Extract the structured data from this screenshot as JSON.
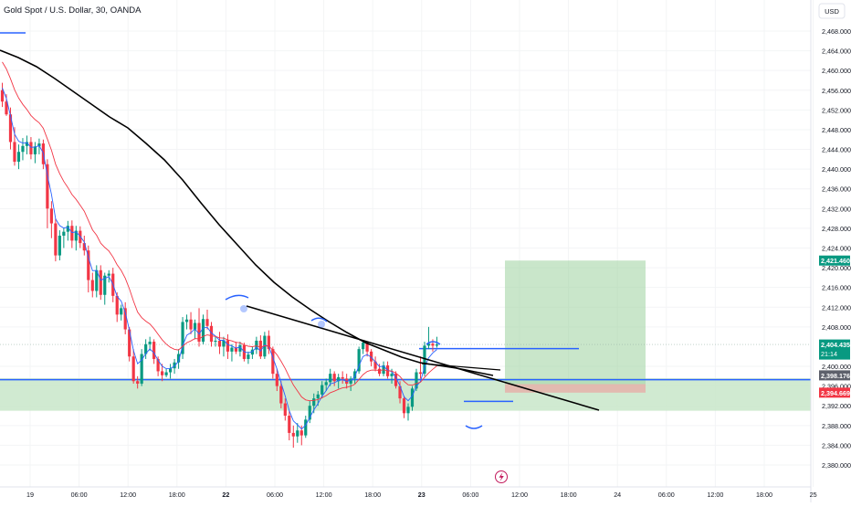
{
  "header": {
    "symbol_title": "Gold Spot / U.S. Dollar, 30, OANDA",
    "currency_button": "USD"
  },
  "colors": {
    "up": "#089981",
    "down": "#f23645",
    "ema_fast": "#2962ff",
    "ema_mid": "#f23645",
    "ema_slow": "#000000",
    "level_line": "#2962ff",
    "zone_fill": "#c8e6c9",
    "target_fill": "#a5d6a7",
    "stop_fill": "#ef9a9a"
  },
  "chart_data": {
    "type": "candlestick",
    "symbol": "XAUUSD",
    "timeframe": "30",
    "ylim": [
      2378.5,
      2471.5
    ],
    "y_ticks": [
      "2,468.000",
      "2,464.000",
      "2,460.000",
      "2,456.000",
      "2,452.000",
      "2,448.000",
      "2,444.000",
      "2,440.000",
      "2,436.000",
      "2,432.000",
      "2,428.000",
      "2,424.000",
      "2,420.000",
      "2,416.000",
      "2,412.000",
      "2,408.000",
      "2,400.000",
      "2,396.000",
      "2,392.000",
      "2,388.000",
      "2,384.000",
      "2,380.000"
    ],
    "x_ticks": [
      "19",
      "06:00",
      "12:00",
      "18:00",
      "22",
      "06:00",
      "12:00",
      "18:00",
      "23",
      "06:00",
      "12:00",
      "18:00",
      "24",
      "06:00",
      "12:00",
      "18:00",
      "25"
    ],
    "x_ticks_bold": [
      "22",
      "23"
    ],
    "price_labels": [
      {
        "text": "2,421.460",
        "value": 2421.46,
        "color": "#089981"
      },
      {
        "text": "2,404.435",
        "value": 2404.435,
        "color": "#089981",
        "subtext": "21:14"
      },
      {
        "text": "2,398.176",
        "value": 2398.176,
        "color": "#5d606b"
      },
      {
        "text": "2,394.669",
        "value": 2394.669,
        "color": "#f23645"
      }
    ],
    "support_zone": [
      2391.0,
      2397.6
    ],
    "position": {
      "entry": 2396.4,
      "target": 2421.46,
      "stop": 2394.669
    },
    "x_range_bars": [
      0,
      197
    ],
    "candle_bars": [
      0,
      108
    ],
    "candles": [
      {
        "o": 2456.0,
        "h": 2457.5,
        "l": 2452.6,
        "c": 2453.7
      },
      {
        "o": 2453.7,
        "h": 2455.2,
        "l": 2450.8,
        "c": 2451.1
      },
      {
        "o": 2451.1,
        "h": 2452.5,
        "l": 2444.0,
        "c": 2445.5
      },
      {
        "o": 2445.5,
        "h": 2448.5,
        "l": 2440.7,
        "c": 2441.5
      },
      {
        "o": 2441.5,
        "h": 2445.0,
        "l": 2440.0,
        "c": 2443.5
      },
      {
        "o": 2443.5,
        "h": 2446.3,
        "l": 2441.8,
        "c": 2444.7
      },
      {
        "o": 2444.7,
        "h": 2446.8,
        "l": 2443.0,
        "c": 2445.5
      },
      {
        "o": 2445.5,
        "h": 2446.5,
        "l": 2442.0,
        "c": 2443.0
      },
      {
        "o": 2443.0,
        "h": 2445.5,
        "l": 2441.2,
        "c": 2444.6
      },
      {
        "o": 2444.6,
        "h": 2446.2,
        "l": 2443.0,
        "c": 2445.2
      },
      {
        "o": 2445.2,
        "h": 2446.0,
        "l": 2440.0,
        "c": 2441.0
      },
      {
        "o": 2441.0,
        "h": 2442.0,
        "l": 2428.0,
        "c": 2432.0
      },
      {
        "o": 2432.0,
        "h": 2433.5,
        "l": 2426.0,
        "c": 2429.0
      },
      {
        "o": 2429.0,
        "h": 2430.0,
        "l": 2421.3,
        "c": 2422.5
      },
      {
        "o": 2422.5,
        "h": 2427.6,
        "l": 2421.5,
        "c": 2426.5
      },
      {
        "o": 2426.5,
        "h": 2428.0,
        "l": 2424.0,
        "c": 2427.3
      },
      {
        "o": 2427.3,
        "h": 2429.5,
        "l": 2425.5,
        "c": 2428.5
      },
      {
        "o": 2428.5,
        "h": 2429.6,
        "l": 2424.0,
        "c": 2425.5
      },
      {
        "o": 2425.5,
        "h": 2428.5,
        "l": 2423.5,
        "c": 2427.5
      },
      {
        "o": 2427.5,
        "h": 2428.4,
        "l": 2424.0,
        "c": 2425.0
      },
      {
        "o": 2425.0,
        "h": 2426.5,
        "l": 2422.5,
        "c": 2423.5
      },
      {
        "o": 2423.5,
        "h": 2424.5,
        "l": 2415.0,
        "c": 2417.5
      },
      {
        "o": 2417.5,
        "h": 2419.0,
        "l": 2414.0,
        "c": 2415.3
      },
      {
        "o": 2415.3,
        "h": 2420.5,
        "l": 2414.0,
        "c": 2419.5
      },
      {
        "o": 2419.5,
        "h": 2420.5,
        "l": 2413.5,
        "c": 2414.5
      },
      {
        "o": 2414.5,
        "h": 2419.0,
        "l": 2412.5,
        "c": 2418.4
      },
      {
        "o": 2418.4,
        "h": 2419.5,
        "l": 2417.0,
        "c": 2418.8
      },
      {
        "o": 2418.8,
        "h": 2420.0,
        "l": 2413.0,
        "c": 2414.3
      },
      {
        "o": 2414.3,
        "h": 2415.0,
        "l": 2409.0,
        "c": 2410.5
      },
      {
        "o": 2410.5,
        "h": 2412.5,
        "l": 2409.3,
        "c": 2411.8
      },
      {
        "o": 2411.8,
        "h": 2413.0,
        "l": 2406.5,
        "c": 2407.5
      },
      {
        "o": 2407.5,
        "h": 2408.0,
        "l": 2401.0,
        "c": 2402.0
      },
      {
        "o": 2402.0,
        "h": 2403.5,
        "l": 2396.5,
        "c": 2397.0
      },
      {
        "o": 2397.0,
        "h": 2398.0,
        "l": 2395.5,
        "c": 2396.5
      },
      {
        "o": 2396.5,
        "h": 2403.5,
        "l": 2396.0,
        "c": 2402.5
      },
      {
        "o": 2402.5,
        "h": 2405.5,
        "l": 2401.5,
        "c": 2404.5
      },
      {
        "o": 2404.5,
        "h": 2406.0,
        "l": 2403.2,
        "c": 2405.0
      },
      {
        "o": 2405.0,
        "h": 2405.5,
        "l": 2400.5,
        "c": 2401.5
      },
      {
        "o": 2401.5,
        "h": 2402.0,
        "l": 2398.0,
        "c": 2399.0
      },
      {
        "o": 2399.0,
        "h": 2400.5,
        "l": 2397.0,
        "c": 2398.2
      },
      {
        "o": 2398.2,
        "h": 2399.5,
        "l": 2397.8,
        "c": 2398.8
      },
      {
        "o": 2398.8,
        "h": 2400.5,
        "l": 2397.5,
        "c": 2399.6
      },
      {
        "o": 2399.6,
        "h": 2401.5,
        "l": 2398.5,
        "c": 2400.8
      },
      {
        "o": 2400.8,
        "h": 2403.5,
        "l": 2399.5,
        "c": 2402.5
      },
      {
        "o": 2402.5,
        "h": 2410.0,
        "l": 2401.5,
        "c": 2409.0
      },
      {
        "o": 2409.0,
        "h": 2410.5,
        "l": 2407.5,
        "c": 2409.5
      },
      {
        "o": 2409.5,
        "h": 2411.0,
        "l": 2406.5,
        "c": 2407.5
      },
      {
        "o": 2407.5,
        "h": 2409.5,
        "l": 2405.5,
        "c": 2408.8
      },
      {
        "o": 2408.8,
        "h": 2411.8,
        "l": 2404.0,
        "c": 2405.0
      },
      {
        "o": 2405.0,
        "h": 2410.5,
        "l": 2404.5,
        "c": 2409.6
      },
      {
        "o": 2409.6,
        "h": 2411.5,
        "l": 2407.5,
        "c": 2408.2
      },
      {
        "o": 2408.2,
        "h": 2409.0,
        "l": 2404.0,
        "c": 2405.0
      },
      {
        "o": 2405.0,
        "h": 2406.0,
        "l": 2404.0,
        "c": 2405.2
      },
      {
        "o": 2405.2,
        "h": 2407.0,
        "l": 2402.5,
        "c": 2404.0
      },
      {
        "o": 2404.0,
        "h": 2406.0,
        "l": 2402.0,
        "c": 2405.3
      },
      {
        "o": 2405.3,
        "h": 2406.5,
        "l": 2401.5,
        "c": 2403.0
      },
      {
        "o": 2403.0,
        "h": 2404.5,
        "l": 2401.0,
        "c": 2403.8
      },
      {
        "o": 2403.8,
        "h": 2405.0,
        "l": 2402.5,
        "c": 2403.0
      },
      {
        "o": 2403.0,
        "h": 2405.0,
        "l": 2402.0,
        "c": 2404.3
      },
      {
        "o": 2404.3,
        "h": 2404.8,
        "l": 2401.0,
        "c": 2401.5
      },
      {
        "o": 2401.5,
        "h": 2403.0,
        "l": 2400.5,
        "c": 2402.4
      },
      {
        "o": 2402.4,
        "h": 2404.0,
        "l": 2401.5,
        "c": 2403.4
      },
      {
        "o": 2403.4,
        "h": 2406.0,
        "l": 2402.5,
        "c": 2405.2
      },
      {
        "o": 2405.2,
        "h": 2406.3,
        "l": 2401.5,
        "c": 2402.0
      },
      {
        "o": 2402.0,
        "h": 2407.0,
        "l": 2401.5,
        "c": 2406.2
      },
      {
        "o": 2406.2,
        "h": 2407.3,
        "l": 2402.5,
        "c": 2403.5
      },
      {
        "o": 2403.5,
        "h": 2404.0,
        "l": 2397.5,
        "c": 2398.5
      },
      {
        "o": 2398.5,
        "h": 2399.5,
        "l": 2395.0,
        "c": 2396.0
      },
      {
        "o": 2396.0,
        "h": 2397.0,
        "l": 2391.5,
        "c": 2392.5
      },
      {
        "o": 2392.5,
        "h": 2393.5,
        "l": 2389.0,
        "c": 2390.0
      },
      {
        "o": 2390.0,
        "h": 2391.0,
        "l": 2385.0,
        "c": 2386.5
      },
      {
        "o": 2386.5,
        "h": 2388.0,
        "l": 2383.5,
        "c": 2385.8
      },
      {
        "o": 2385.8,
        "h": 2388.5,
        "l": 2384.5,
        "c": 2387.0
      },
      {
        "o": 2387.0,
        "h": 2388.0,
        "l": 2384.0,
        "c": 2386.0
      },
      {
        "o": 2386.0,
        "h": 2390.0,
        "l": 2385.5,
        "c": 2389.2
      },
      {
        "o": 2389.2,
        "h": 2393.0,
        "l": 2388.5,
        "c": 2392.0
      },
      {
        "o": 2392.0,
        "h": 2394.5,
        "l": 2390.5,
        "c": 2393.5
      },
      {
        "o": 2393.5,
        "h": 2395.0,
        "l": 2392.0,
        "c": 2394.3
      },
      {
        "o": 2394.3,
        "h": 2397.0,
        "l": 2393.5,
        "c": 2396.2
      },
      {
        "o": 2396.2,
        "h": 2397.5,
        "l": 2395.0,
        "c": 2396.8
      },
      {
        "o": 2396.8,
        "h": 2399.5,
        "l": 2396.0,
        "c": 2398.5
      },
      {
        "o": 2398.5,
        "h": 2399.0,
        "l": 2396.0,
        "c": 2397.0
      },
      {
        "o": 2397.0,
        "h": 2398.5,
        "l": 2395.5,
        "c": 2397.8
      },
      {
        "o": 2397.8,
        "h": 2399.0,
        "l": 2396.5,
        "c": 2397.5
      },
      {
        "o": 2397.5,
        "h": 2398.5,
        "l": 2395.5,
        "c": 2396.5
      },
      {
        "o": 2396.5,
        "h": 2398.0,
        "l": 2395.0,
        "c": 2397.5
      },
      {
        "o": 2397.5,
        "h": 2399.5,
        "l": 2396.5,
        "c": 2399.0
      },
      {
        "o": 2399.0,
        "h": 2404.0,
        "l": 2398.5,
        "c": 2403.5
      },
      {
        "o": 2403.5,
        "h": 2405.3,
        "l": 2402.5,
        "c": 2404.8
      },
      {
        "o": 2404.8,
        "h": 2405.0,
        "l": 2402.0,
        "c": 2403.0
      },
      {
        "o": 2403.0,
        "h": 2403.5,
        "l": 2400.0,
        "c": 2401.0
      },
      {
        "o": 2401.0,
        "h": 2402.0,
        "l": 2399.0,
        "c": 2399.5
      },
      {
        "o": 2399.5,
        "h": 2400.5,
        "l": 2398.0,
        "c": 2398.5
      },
      {
        "o": 2398.5,
        "h": 2401.0,
        "l": 2398.0,
        "c": 2400.2
      },
      {
        "o": 2400.2,
        "h": 2401.0,
        "l": 2397.5,
        "c": 2398.0
      },
      {
        "o": 2398.0,
        "h": 2399.5,
        "l": 2396.5,
        "c": 2398.5
      },
      {
        "o": 2398.5,
        "h": 2399.0,
        "l": 2395.5,
        "c": 2396.0
      },
      {
        "o": 2396.0,
        "h": 2397.0,
        "l": 2392.5,
        "c": 2393.5
      },
      {
        "o": 2393.5,
        "h": 2394.0,
        "l": 2389.5,
        "c": 2390.5
      },
      {
        "o": 2390.5,
        "h": 2392.5,
        "l": 2389.0,
        "c": 2391.8
      },
      {
        "o": 2391.8,
        "h": 2396.0,
        "l": 2391.0,
        "c": 2395.5
      },
      {
        "o": 2395.5,
        "h": 2399.5,
        "l": 2395.0,
        "c": 2398.8
      },
      {
        "o": 2398.8,
        "h": 2402.0,
        "l": 2397.5,
        "c": 2398.5
      },
      {
        "o": 2398.5,
        "h": 2405.0,
        "l": 2398.0,
        "c": 2404.2
      },
      {
        "o": 2404.2,
        "h": 2408.0,
        "l": 2403.5,
        "c": 2404.6
      },
      {
        "o": 2404.6,
        "h": 2405.5,
        "l": 2403.0,
        "c": 2404.2
      },
      {
        "o": 2404.2,
        "h": 2406.0,
        "l": 2403.8,
        "c": 2404.435
      }
    ]
  }
}
